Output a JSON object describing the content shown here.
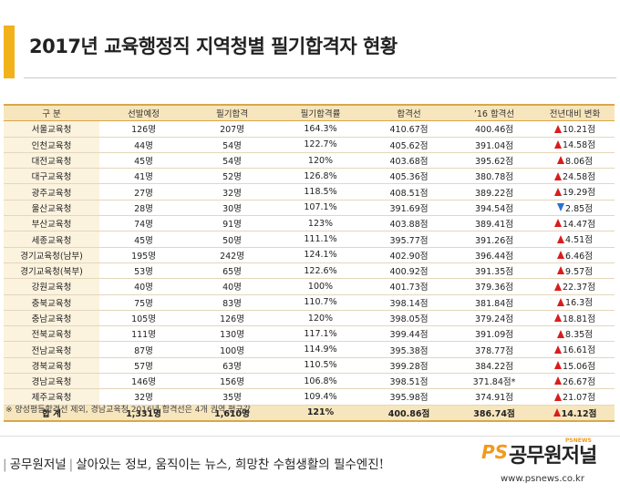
{
  "title": "2017년 교육행정직 지역청별 필기합격자 현황",
  "headers": [
    "구 분",
    "선발예정",
    "필기합격",
    "필기합격률",
    "합격선",
    "’16 합격선",
    "전년대비 변화"
  ],
  "rows": [
    {
      "region": "서울교육청",
      "plan": "126명",
      "pass": "207명",
      "rate": "164.3%",
      "cutoff": "410.67점",
      "prev": "400.46점",
      "dir": "up",
      "change": "10.21점"
    },
    {
      "region": "인천교육청",
      "plan": "44명",
      "pass": "54명",
      "rate": "122.7%",
      "cutoff": "405.62점",
      "prev": "391.04점",
      "dir": "up",
      "change": "14.58점"
    },
    {
      "region": "대전교육청",
      "plan": "45명",
      "pass": "54명",
      "rate": "120%",
      "cutoff": "403.68점",
      "prev": "395.62점",
      "dir": "up",
      "change": "8.06점"
    },
    {
      "region": "대구교육청",
      "plan": "41명",
      "pass": "52명",
      "rate": "126.8%",
      "cutoff": "405.36점",
      "prev": "380.78점",
      "dir": "up",
      "change": "24.58점"
    },
    {
      "region": "광주교육청",
      "plan": "27명",
      "pass": "32명",
      "rate": "118.5%",
      "cutoff": "408.51점",
      "prev": "389.22점",
      "dir": "up",
      "change": "19.29점"
    },
    {
      "region": "울산교육청",
      "plan": "28명",
      "pass": "30명",
      "rate": "107.1%",
      "cutoff": "391.69점",
      "prev": "394.54점",
      "dir": "down",
      "change": "2.85점"
    },
    {
      "region": "부산교육청",
      "plan": "74명",
      "pass": "91명",
      "rate": "123%",
      "cutoff": "403.88점",
      "prev": "389.41점",
      "dir": "up",
      "change": "14.47점"
    },
    {
      "region": "세종교육청",
      "plan": "45명",
      "pass": "50명",
      "rate": "111.1%",
      "cutoff": "395.77점",
      "prev": "391.26점",
      "dir": "up",
      "change": "4.51점"
    },
    {
      "region": "경기교육청(남부)",
      "plan": "195명",
      "pass": "242명",
      "rate": "124.1%",
      "cutoff": "402.90점",
      "prev": "396.44점",
      "dir": "up",
      "change": "6.46점"
    },
    {
      "region": "경기교육청(북부)",
      "plan": "53명",
      "pass": "65명",
      "rate": "122.6%",
      "cutoff": "400.92점",
      "prev": "391.35점",
      "dir": "up",
      "change": "9.57점"
    },
    {
      "region": "강원교육청",
      "plan": "40명",
      "pass": "40명",
      "rate": "100%",
      "cutoff": "401.73점",
      "prev": "379.36점",
      "dir": "up",
      "change": "22.37점"
    },
    {
      "region": "충북교육청",
      "plan": "75명",
      "pass": "83명",
      "rate": "110.7%",
      "cutoff": "398.14점",
      "prev": "381.84점",
      "dir": "up",
      "change": "16.3점"
    },
    {
      "region": "충남교육청",
      "plan": "105명",
      "pass": "126명",
      "rate": "120%",
      "cutoff": "398.05점",
      "prev": "379.24점",
      "dir": "up",
      "change": "18.81점"
    },
    {
      "region": "전북교육청",
      "plan": "111명",
      "pass": "130명",
      "rate": "117.1%",
      "cutoff": "399.44점",
      "prev": "391.09점",
      "dir": "up",
      "change": "8.35점"
    },
    {
      "region": "전남교육청",
      "plan": "87명",
      "pass": "100명",
      "rate": "114.9%",
      "cutoff": "395.38점",
      "prev": "378.77점",
      "dir": "up",
      "change": "16.61점"
    },
    {
      "region": "경북교육청",
      "plan": "57명",
      "pass": "63명",
      "rate": "110.5%",
      "cutoff": "399.28점",
      "prev": "384.22점",
      "dir": "up",
      "change": "15.06점"
    },
    {
      "region": "경남교육청",
      "plan": "146명",
      "pass": "156명",
      "rate": "106.8%",
      "cutoff": "398.51점",
      "prev": "371.84점*",
      "dir": "up",
      "change": "26.67점"
    },
    {
      "region": "제주교육청",
      "plan": "32명",
      "pass": "35명",
      "rate": "109.4%",
      "cutoff": "395.98점",
      "prev": "374.91점",
      "dir": "up",
      "change": "21.07점"
    }
  ],
  "total": {
    "region": "합 계",
    "plan": "1,331명",
    "pass": "1,610명",
    "rate": "121%",
    "cutoff": "400.86점",
    "prev": "386.74점",
    "dir": "up",
    "change": "14.12점"
  },
  "note": "※ 양성평등합격선 제외, 경남교육청 2016년 합격선은 4개 권역 평균값",
  "footer": {
    "brand": "공무원저널",
    "slogan": "살아있는 정보, 움직이는 뉴스, 희망찬 수험생활의 필수엔진!",
    "logo_ps": "PS",
    "logo_name": "공무원저널",
    "logo_sub": "PSNEWS",
    "url": "www.psnews.co.kr"
  },
  "colors": {
    "accent": "#f2b21b",
    "header_bg": "#f7e6bd",
    "up": "#d81d1d",
    "down": "#2a6fd6"
  }
}
